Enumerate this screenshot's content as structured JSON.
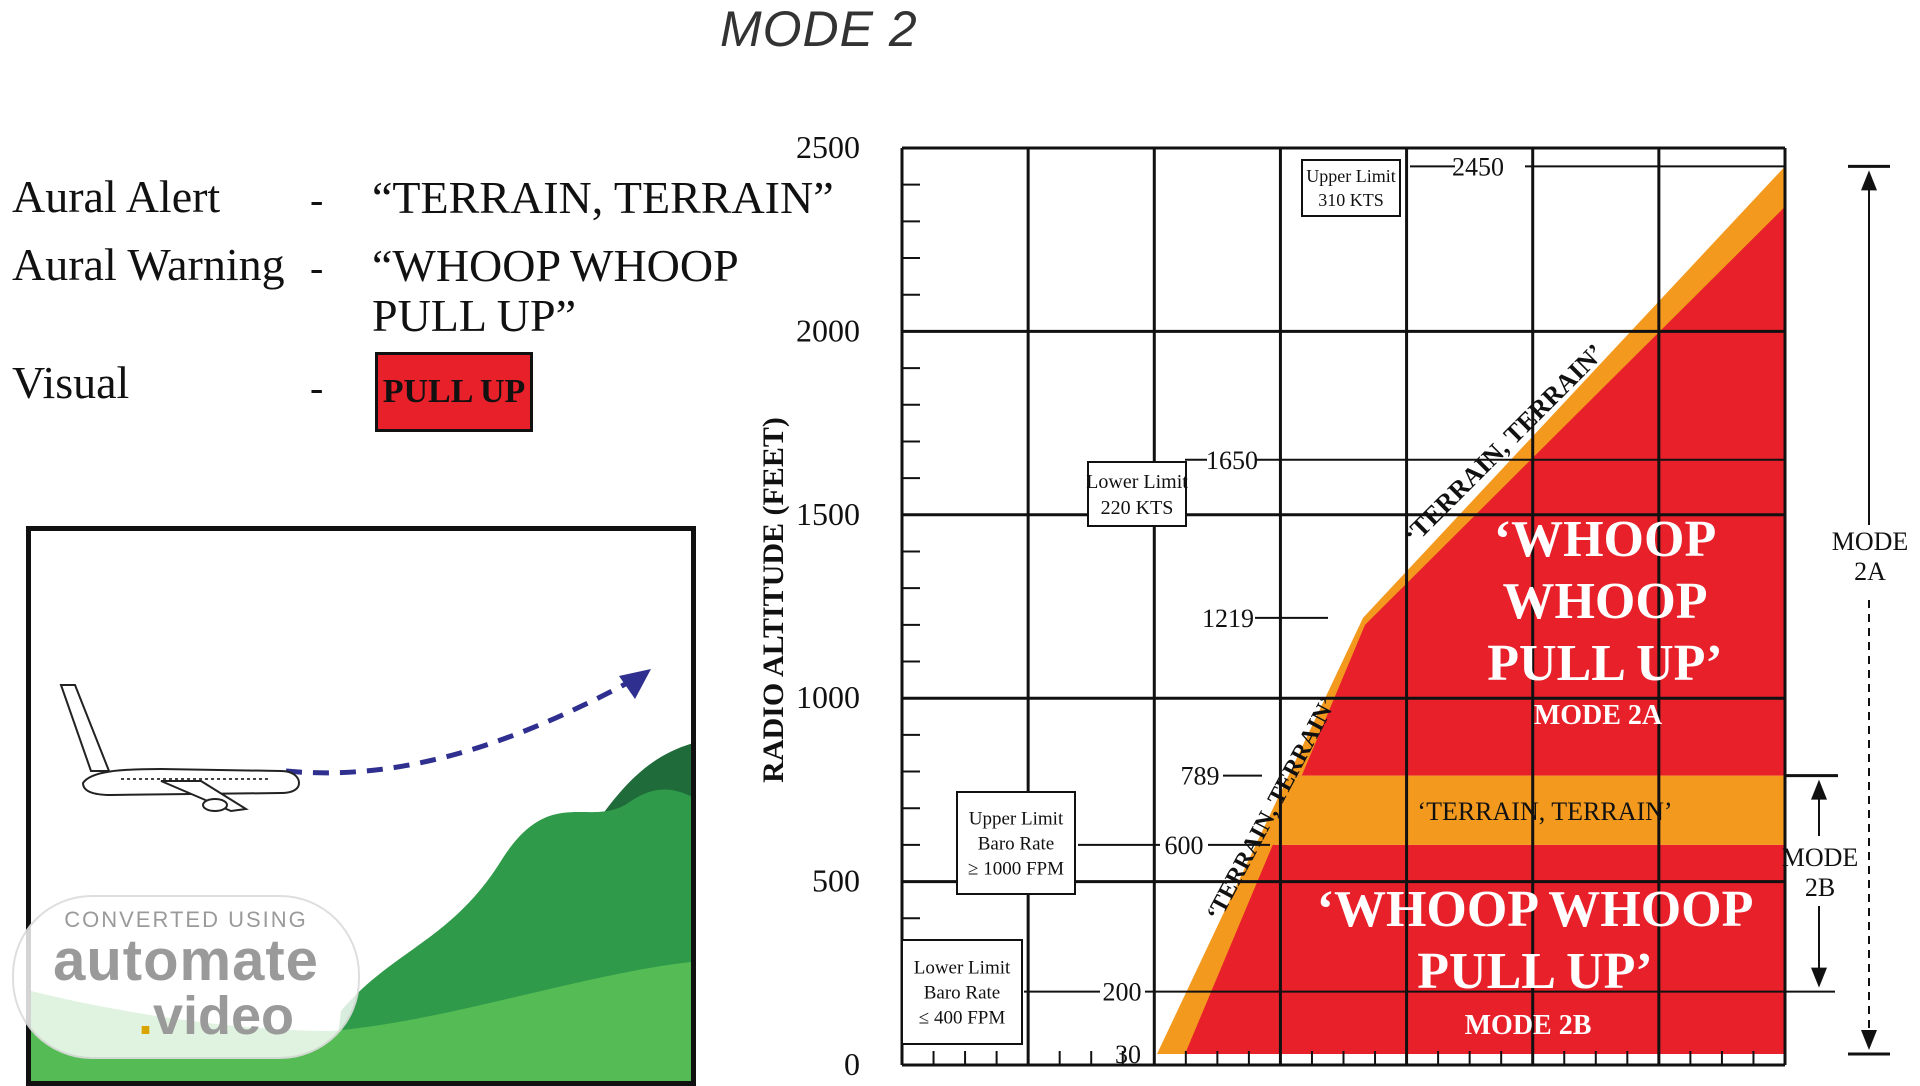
{
  "title": "MODE 2",
  "alerts": {
    "aural_alert": {
      "label": "Aural Alert",
      "dash": "-",
      "text": "“TERRAIN, TERRAIN”"
    },
    "aural_warning": {
      "label": "Aural Warning",
      "dash": "-",
      "text_line1": "“WHOOP WHOOP",
      "text_line2": "PULL UP”"
    },
    "visual": {
      "label": "Visual",
      "dash": "-",
      "box_text": "PULL UP"
    }
  },
  "colors": {
    "warning_red": "#e8202a",
    "caution_orange": "#f39a1e",
    "terrain_dark_green": "#1f6b3a",
    "terrain_green": "#2f9a4a",
    "terrain_light_green": "#55bb55",
    "flight_path_arrow": "#2f2f8f"
  },
  "chart_data": {
    "type": "area",
    "ylabel": "RADIO ALTITUDE (FEET)",
    "y_ticks": [
      "2500",
      "2000",
      "1500",
      "1000",
      "500",
      "0"
    ],
    "ylim": [
      0,
      2500
    ],
    "grid": true,
    "altitude_marks": [
      "2450",
      "1650",
      "1219",
      "789",
      "600",
      "200",
      "30"
    ],
    "regions": {
      "mode2a_warning": "‘WHOOP WHOOP PULL UP’",
      "mode2a_label": "MODE 2A",
      "mode2a_caution_upper": "‘TERRAIN, TERRAIN’",
      "mode2a_caution_lower": "‘TERRAIN, TERRAIN’",
      "mode2b_caution": "‘TERRAIN, TERRAIN’",
      "mode2b_warning": "‘WHOOP WHOOP PULL UP’",
      "mode2b_label": "MODE 2B"
    },
    "callouts": {
      "upper_limit_speed": [
        "Upper Limit",
        "310 KTS"
      ],
      "lower_limit_speed": [
        "Lower Limit",
        "220 KTS"
      ],
      "upper_limit_baro": [
        "Upper Limit",
        "Baro Rate",
        "≥ 1000 FPM"
      ],
      "lower_limit_baro": [
        "Lower Limit",
        "Baro Rate",
        "≤ 400 FPM"
      ]
    },
    "side_labels": {
      "mode2a": [
        "MODE",
        "2A"
      ],
      "mode2b": [
        "MODE",
        "2B"
      ]
    }
  },
  "watermark": {
    "line1": "CONVERTED USING",
    "line2": "automate",
    "line3_dot": ".",
    "line3": "video"
  }
}
